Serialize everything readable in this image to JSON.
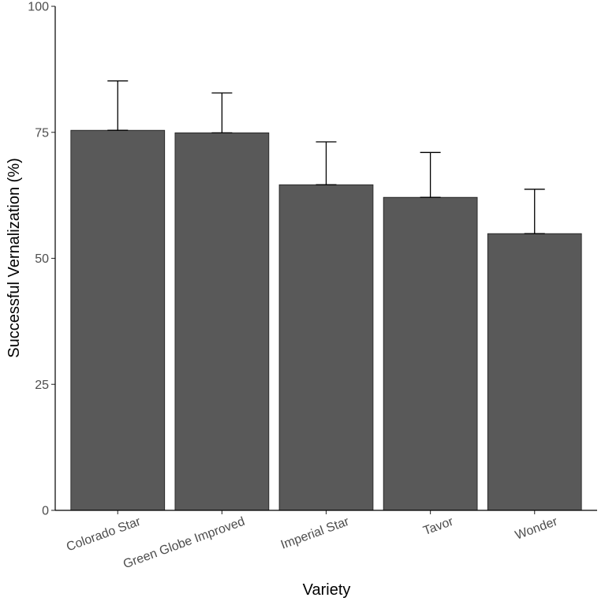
{
  "chart_data": {
    "type": "bar",
    "title": "",
    "xlabel": "Variety",
    "ylabel": "Successful Vernalization (%)",
    "categories": [
      "Colorado Star",
      "Green Globe Improved",
      "Imperial Star",
      "Tavor",
      "Wonder"
    ],
    "values": [
      75.4,
      74.9,
      64.6,
      62.1,
      54.9
    ],
    "error_upper": [
      85.2,
      82.8,
      73.1,
      71.0,
      63.7
    ],
    "ylim": [
      0,
      100
    ],
    "yticks": [
      0,
      25,
      50,
      75,
      100
    ],
    "bar_color": "#595959",
    "grid": false
  }
}
